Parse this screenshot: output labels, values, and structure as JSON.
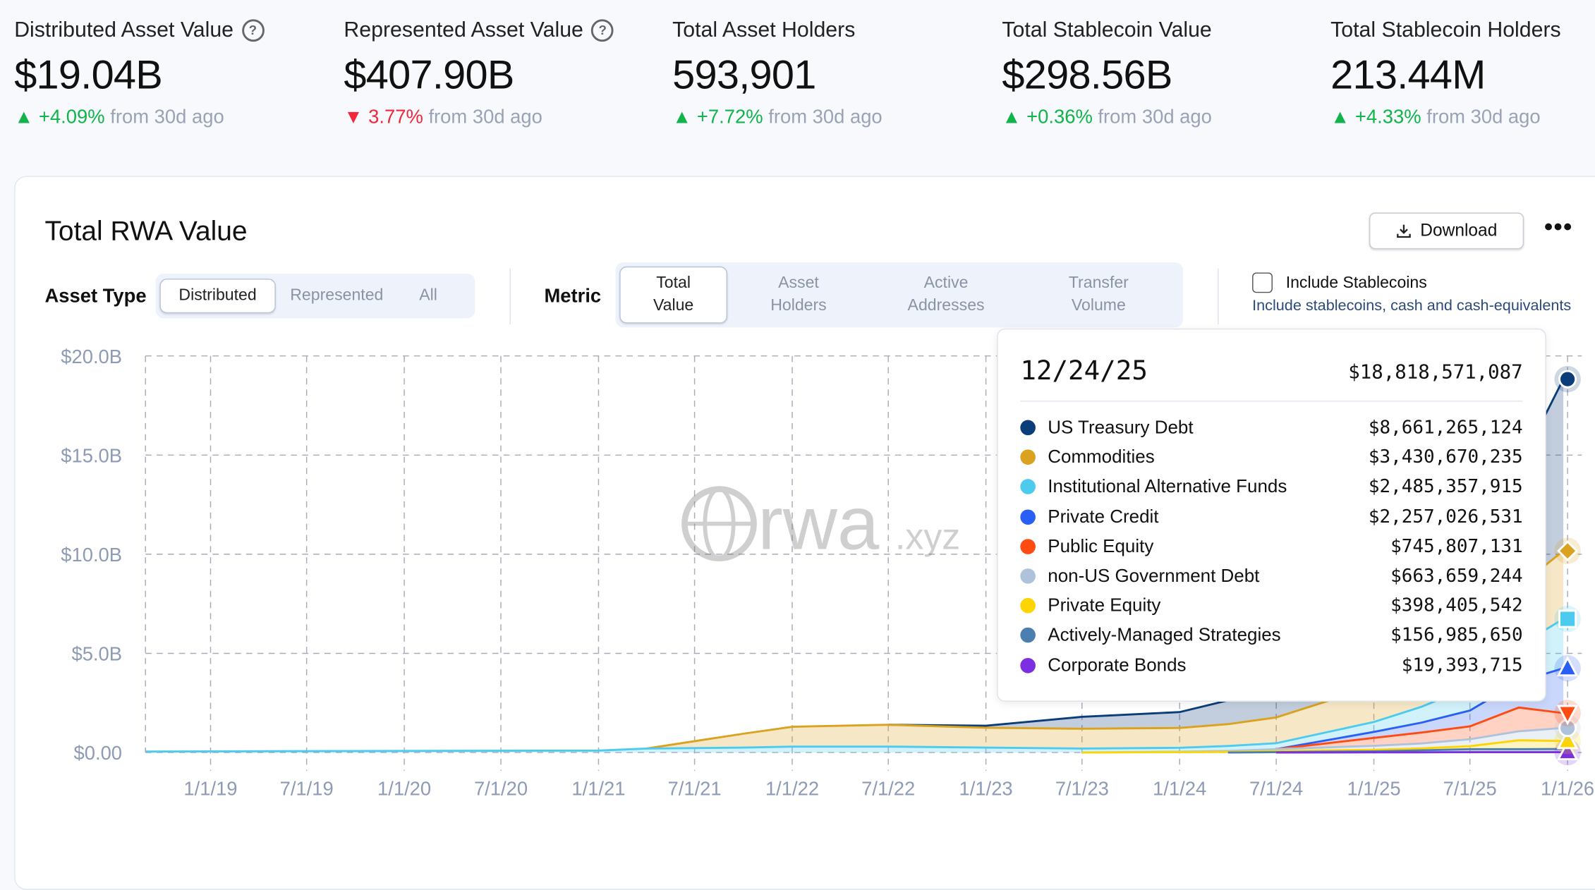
{
  "stats": [
    {
      "label": "Distributed Asset Value",
      "help": true,
      "value": "$19.04B",
      "change": "+4.09%",
      "direction": "up",
      "suffix": "from 30d ago"
    },
    {
      "label": "Represented Asset Value",
      "help": true,
      "value": "$407.90B",
      "change": "3.77%",
      "direction": "down",
      "suffix": "from 30d ago"
    },
    {
      "label": "Total Asset Holders",
      "help": false,
      "value": "593,901",
      "change": "+7.72%",
      "direction": "up",
      "suffix": "from 30d ago"
    },
    {
      "label": "Total Stablecoin Value",
      "help": false,
      "value": "$298.56B",
      "change": "+0.36%",
      "direction": "up",
      "suffix": "from 30d ago"
    },
    {
      "label": "Total Stablecoin Holders",
      "help": false,
      "value": "213.44M",
      "change": "+4.33%",
      "direction": "up",
      "suffix": "from 30d ago"
    }
  ],
  "panel": {
    "title": "Total RWA Value",
    "download_label": "Download",
    "more_label": "•••",
    "asset_type_label": "Asset Type",
    "asset_type_options": [
      "Distributed",
      "Represented",
      "All"
    ],
    "asset_type_selected": "Distributed",
    "metric_label": "Metric",
    "metric_options": [
      [
        "Total",
        "Value"
      ],
      [
        "Asset",
        "Holders"
      ],
      [
        "Active",
        "Addresses"
      ],
      [
        "Transfer",
        "Volume"
      ]
    ],
    "metric_selected": "Total Value",
    "include_stablecoins_label": "Include Stablecoins",
    "include_stablecoins_checked": false,
    "include_stablecoins_desc": "Include stablecoins, cash and cash-equivalents",
    "watermark": "rwa.xyz"
  },
  "tooltip": {
    "date": "12/24/25",
    "total": "$18,818,571,087",
    "rows": [
      {
        "name": "US Treasury Debt",
        "value": "$8,661,265,124",
        "color": "#0b3d78"
      },
      {
        "name": "Commodities",
        "value": "$3,430,670,235",
        "color": "#daa21f"
      },
      {
        "name": "Institutional Alternative Funds",
        "value": "$2,485,357,915",
        "color": "#4ccbef"
      },
      {
        "name": "Private Credit",
        "value": "$2,257,026,531",
        "color": "#2a5ff6"
      },
      {
        "name": "Public Equity",
        "value": "$745,807,131",
        "color": "#ff4a12"
      },
      {
        "name": "non-US Government Debt",
        "value": "$663,659,244",
        "color": "#aec2dc"
      },
      {
        "name": "Private Equity",
        "value": "$398,405,542",
        "color": "#ffd500"
      },
      {
        "name": "Actively-Managed Strategies",
        "value": "$156,985,650",
        "color": "#4a7fb0"
      },
      {
        "name": "Corporate Bonds",
        "value": "$19,393,715",
        "color": "#7b2fe0"
      }
    ]
  },
  "chart_data": {
    "type": "area",
    "stacked": true,
    "grid": true,
    "ylim": [
      0,
      20
    ],
    "yticks": [
      "$0.00",
      "$5.0B",
      "$10.0B",
      "$15.0B",
      "$20.0B"
    ],
    "ytick_values": [
      0,
      5,
      10,
      15,
      20
    ],
    "xticks": [
      "1/1/19",
      "7/1/19",
      "1/1/20",
      "7/1/20",
      "1/1/21",
      "7/1/21",
      "1/1/22",
      "7/1/22",
      "1/1/23",
      "7/1/23",
      "1/1/24",
      "7/1/24",
      "1/1/25",
      "7/1/25",
      "1/1/26"
    ],
    "x": [
      "2018-09-01",
      "2019-01-01",
      "2019-07-01",
      "2020-01-01",
      "2020-07-01",
      "2021-01-01",
      "2021-04-01",
      "2021-10-01",
      "2022-01-01",
      "2022-07-01",
      "2023-01-01",
      "2023-07-01",
      "2024-01-01",
      "2024-04-01",
      "2024-07-01",
      "2025-01-01",
      "2025-04-01",
      "2025-07-01",
      "2025-10-01",
      "2025-12-24"
    ],
    "series": [
      {
        "name": "Corporate Bonds",
        "values": [
          0,
          0,
          0,
          0,
          0,
          0,
          0,
          0,
          0,
          0,
          0,
          0,
          0,
          0,
          0,
          0.01,
          0.01,
          0.02,
          0.02,
          0.02
        ]
      },
      {
        "name": "Actively-Managed Strategies",
        "values": [
          0,
          0,
          0,
          0,
          0,
          0,
          0,
          0,
          0,
          0,
          0,
          0,
          0,
          0,
          0.02,
          0.05,
          0.1,
          0.15,
          0.15,
          0.16
        ]
      },
      {
        "name": "Private Equity",
        "values": [
          0,
          0,
          0,
          0,
          0,
          0,
          0,
          0,
          0,
          0,
          0,
          0,
          0.02,
          0.03,
          0.05,
          0.08,
          0.1,
          0.15,
          0.45,
          0.4
        ]
      },
      {
        "name": "non-US Government Debt",
        "values": [
          0,
          0,
          0,
          0,
          0,
          0,
          0,
          0,
          0,
          0,
          0,
          0,
          0.02,
          0.05,
          0.1,
          0.2,
          0.25,
          0.35,
          0.45,
          0.66
        ]
      },
      {
        "name": "Public Equity",
        "values": [
          0,
          0,
          0,
          0,
          0,
          0,
          0,
          0,
          0,
          0,
          0,
          0,
          0,
          0,
          0,
          0.4,
          0.55,
          0.65,
          1.2,
          0.75
        ]
      },
      {
        "name": "Private Credit",
        "values": [
          0,
          0,
          0,
          0,
          0,
          0,
          0,
          0,
          0,
          0,
          0,
          0,
          0,
          0,
          0,
          0.3,
          0.5,
          0.8,
          1.3,
          2.26
        ]
      },
      {
        "name": "Institutional Alternative Funds",
        "values": [
          0.05,
          0.06,
          0.07,
          0.08,
          0.09,
          0.1,
          0.2,
          0.25,
          0.3,
          0.3,
          0.25,
          0.2,
          0.2,
          0.25,
          0.3,
          0.5,
          0.8,
          1.2,
          1.8,
          2.49
        ]
      },
      {
        "name": "Commodities",
        "values": [
          0,
          0,
          0,
          0,
          0,
          0,
          0,
          0.7,
          1.0,
          1.1,
          1.0,
          1.0,
          1.0,
          1.1,
          1.3,
          1.8,
          2.0,
          2.2,
          3.0,
          3.43
        ]
      },
      {
        "name": "US Treasury Debt",
        "values": [
          0,
          0,
          0,
          0,
          0,
          0,
          0,
          0,
          0,
          0,
          0.1,
          0.6,
          0.8,
          1.2,
          1.8,
          2.5,
          3.2,
          4.0,
          6.0,
          8.66
        ]
      }
    ]
  }
}
